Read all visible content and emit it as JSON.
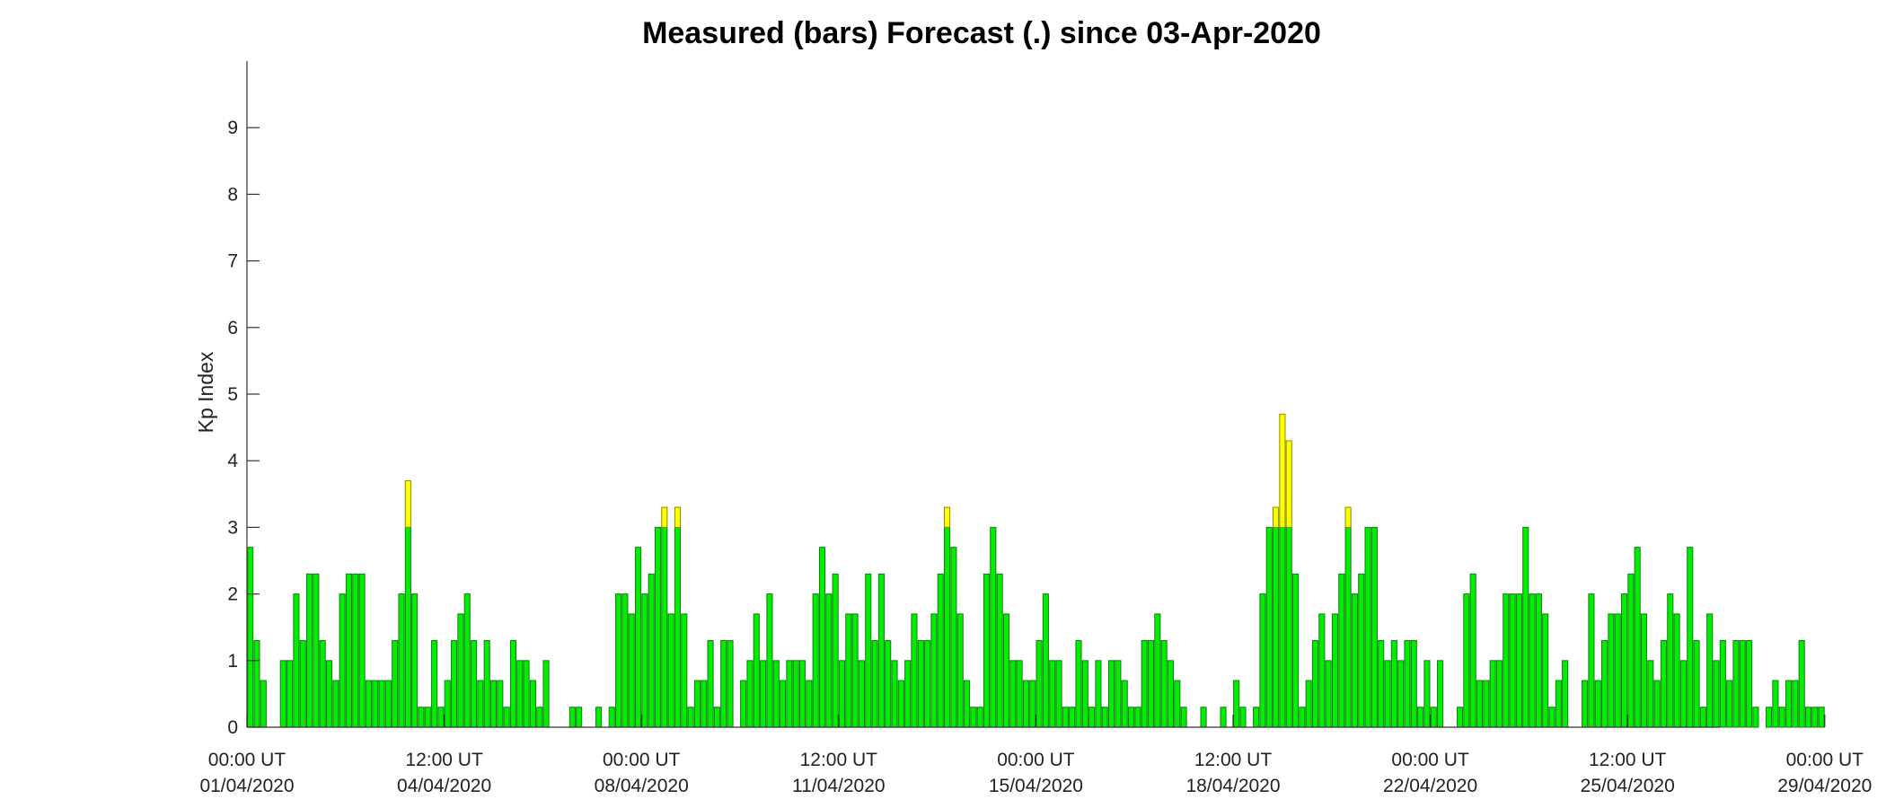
{
  "chart_data": {
    "type": "bar",
    "title": "Measured (bars) Forecast (.) since 03-Apr-2020",
    "ylabel": "Kp Index",
    "xlabel": "",
    "ylim": [
      0,
      10
    ],
    "yticks": [
      0,
      1,
      2,
      3,
      4,
      5,
      6,
      7,
      8,
      9
    ],
    "xlim": [
      0,
      258
    ],
    "xticks": [
      {
        "index": 0,
        "time": "00:00 UT",
        "date": "01/04/2020"
      },
      {
        "index": 30,
        "time": "12:00 UT",
        "date": "04/04/2020"
      },
      {
        "index": 60,
        "time": "00:00 UT",
        "date": "08/04/2020"
      },
      {
        "index": 90,
        "time": "12:00 UT",
        "date": "11/04/2020"
      },
      {
        "index": 120,
        "time": "00:00 UT",
        "date": "15/04/2020"
      },
      {
        "index": 150,
        "time": "12:00 UT",
        "date": "18/04/2020"
      },
      {
        "index": 180,
        "time": "00:00 UT",
        "date": "22/04/2020"
      },
      {
        "index": 210,
        "time": "12:00 UT",
        "date": "25/04/2020"
      },
      {
        "index": 240,
        "time": "00:00 UT",
        "date": "29/04/2020"
      }
    ],
    "bar_interval": "3 hours",
    "colors": {
      "quiet": "#00ee00",
      "active": "#ffff00",
      "edge": "#1a7a1a"
    },
    "color_rule": "bars with Kp > 3 are yellow, otherwise green",
    "values": [
      2.7,
      1.3,
      0.7,
      0,
      0,
      1,
      1,
      2,
      1.3,
      2.3,
      2.3,
      1.3,
      1,
      0.7,
      2,
      2.3,
      2.3,
      2.3,
      0.7,
      0.7,
      0.7,
      0.7,
      1.3,
      2,
      3.7,
      2,
      0.3,
      0.3,
      1.3,
      0.3,
      0.7,
      1.3,
      1.7,
      2,
      1.3,
      0.7,
      1.3,
      0.7,
      0.7,
      0.3,
      1.3,
      1,
      1,
      0.7,
      0.3,
      1,
      0,
      0,
      0,
      0.3,
      0.3,
      0,
      0,
      0.3,
      0,
      0.3,
      2,
      2,
      1.7,
      2.7,
      2,
      2.3,
      3,
      3.3,
      1.7,
      3.3,
      1.7,
      0.3,
      0.7,
      0.7,
      1.3,
      0.3,
      1.3,
      1.3,
      0,
      0.7,
      1,
      1.7,
      1,
      2,
      1,
      0.7,
      1,
      1,
      1,
      0.7,
      2,
      2.7,
      2,
      2.3,
      1,
      1.7,
      1.7,
      1,
      2.3,
      1.3,
      2.3,
      1.3,
      1,
      0.7,
      1,
      1.7,
      1.3,
      1.3,
      1.7,
      2.3,
      3.3,
      2.7,
      1.7,
      0.7,
      0.3,
      0.3,
      2.3,
      3,
      2.3,
      1.7,
      1,
      1,
      0.7,
      0.7,
      1.3,
      2,
      1,
      1,
      0.3,
      0.3,
      1.3,
      1,
      0.3,
      1,
      0.3,
      1,
      1,
      0.7,
      0.3,
      0.3,
      1.3,
      1.3,
      1.7,
      1.3,
      1,
      0.7,
      0.3,
      0,
      0,
      0.3,
      0,
      0,
      0.3,
      0,
      0.7,
      0.3,
      0,
      0.3,
      2,
      3,
      3.3,
      4.7,
      4.3,
      2.3,
      0.3,
      0.7,
      1.3,
      1.7,
      1,
      1.7,
      2.3,
      3.3,
      2,
      2.3,
      3,
      3,
      1.3,
      1,
      1.3,
      1,
      1.3,
      1.3,
      0.3,
      1,
      0.3,
      1,
      0,
      0,
      0.3,
      2,
      2.3,
      0.7,
      0.7,
      1,
      1,
      2,
      2,
      2,
      3,
      2,
      2,
      1.7,
      0.3,
      0.7,
      1,
      0,
      0,
      0.7,
      2,
      0.7,
      1.3,
      1.7,
      1.7,
      2,
      2.3,
      2.7,
      1.7,
      1,
      0.7,
      1.3,
      2,
      1.7,
      1,
      2.7,
      1.3,
      0.3,
      1.7,
      1,
      1.3,
      0.7,
      1.3,
      1.3,
      1.3,
      0.3,
      0,
      0.3,
      0.7,
      0.3,
      0.7,
      0.7,
      1.3,
      0.3,
      0.3,
      0.3
    ]
  }
}
